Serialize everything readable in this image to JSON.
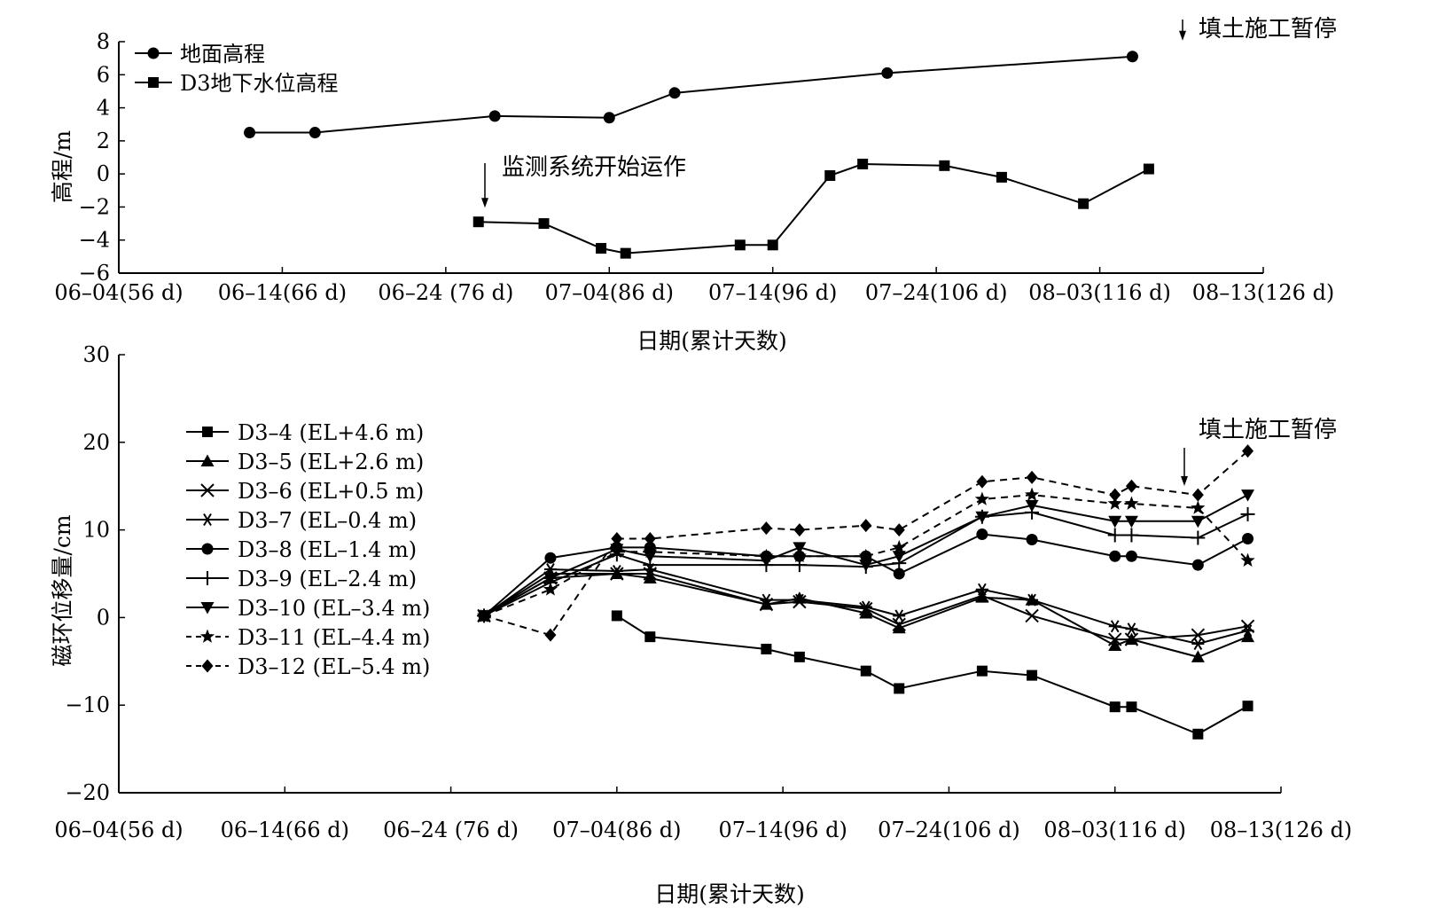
{
  "chart_data": [
    {
      "type": "line",
      "xlabel": "日期(累计天数)",
      "ylabel": "高程/m",
      "x_unit": "累计天数 (d)",
      "xlim": [
        56,
        126
      ],
      "ylim": [
        -6,
        8
      ],
      "yticks": [
        -6,
        -4,
        -2,
        0,
        2,
        4,
        6,
        8
      ],
      "xticks": [
        {
          "x": 56,
          "label": "06–04(56 d)"
        },
        {
          "x": 66,
          "label": "06–14(66 d)"
        },
        {
          "x": 76,
          "label": "06–24 (76 d)"
        },
        {
          "x": 86,
          "label": "07–04(86 d)"
        },
        {
          "x": 96,
          "label": "07–14(96 d)"
        },
        {
          "x": 106,
          "label": "07–24(106 d)"
        },
        {
          "x": 116,
          "label": "08–03(116 d)"
        },
        {
          "x": 126,
          "label": "08–13(126 d)"
        }
      ],
      "legend_position": "top-left",
      "series": [
        {
          "name": "地面高程",
          "marker": "circle",
          "dash": false,
          "x": [
            64,
            68,
            79,
            86,
            90,
            103,
            118
          ],
          "y": [
            2.5,
            2.5,
            3.5,
            3.4,
            4.9,
            6.1,
            7.1
          ]
        },
        {
          "name": "D3地下水位高程",
          "marker": "square",
          "dash": false,
          "x": [
            78,
            82,
            85.5,
            87,
            94,
            96,
            99.5,
            101.5,
            106.5,
            110,
            115,
            119
          ],
          "y": [
            -2.9,
            -3.0,
            -4.5,
            -4.8,
            -4.3,
            -4.3,
            -0.1,
            0.6,
            0.5,
            -0.2,
            -1.8,
            0.3
          ]
        }
      ],
      "annotations": [
        {
          "text": "填土施工暂停",
          "x": 118,
          "y": 7.1
        },
        {
          "text": "监测系统开始运作",
          "x": 78,
          "y": -2.9
        }
      ]
    },
    {
      "type": "line",
      "xlabel": "日期(累计天数)",
      "ylabel": "磁环位移量/cm",
      "x_unit": "累计天数 (d)",
      "xlim": [
        56,
        126
      ],
      "ylim": [
        -20,
        30
      ],
      "yticks": [
        -20,
        -10,
        0,
        10,
        20,
        30
      ],
      "xticks": [
        {
          "x": 56,
          "label": "06–04(56 d)"
        },
        {
          "x": 66,
          "label": "06–14(66 d)"
        },
        {
          "x": 76,
          "label": "06–24 (76 d)"
        },
        {
          "x": 86,
          "label": "07–04(86 d)"
        },
        {
          "x": 96,
          "label": "07–14(96 d)"
        },
        {
          "x": 106,
          "label": "07–24(106 d)"
        },
        {
          "x": 116,
          "label": "08–03(116 d)"
        },
        {
          "x": 126,
          "label": "08–13(126 d)"
        }
      ],
      "legend_position": "left",
      "series": [
        {
          "name": "D3–4 (EL+4.6 m)",
          "marker": "square",
          "dash": false,
          "x": [
            86,
            88,
            95,
            97,
            101,
            103,
            108,
            111,
            116,
            117,
            121,
            124
          ],
          "y": [
            0.2,
            -2.2,
            -3.6,
            -4.5,
            -6.1,
            -8.1,
            -6.1,
            -6.6,
            -10.2,
            -10.2,
            -13.3,
            -10.1
          ]
        },
        {
          "name": "D3–5 (EL+2.6 m)",
          "marker": "triangle-up",
          "dash": false,
          "x": [
            78,
            82,
            86,
            88,
            95,
            97,
            101,
            103,
            108,
            111,
            116,
            117,
            121,
            124
          ],
          "y": [
            0.2,
            5.0,
            5.0,
            4.5,
            1.5,
            2.2,
            0.5,
            -1.2,
            2.3,
            2.0,
            -3.2,
            -2.5,
            -4.5,
            -2.2
          ]
        },
        {
          "name": "D3–6 (EL+0.5 m)",
          "marker": "x",
          "dash": false,
          "x": [
            78,
            82,
            86,
            88,
            95,
            97,
            101,
            103,
            108,
            111,
            116,
            117,
            121,
            124
          ],
          "y": [
            0.2,
            4.5,
            5.0,
            5.0,
            1.5,
            1.8,
            1.0,
            -0.8,
            2.5,
            0.2,
            -2.5,
            -2.5,
            -2.0,
            -1.0
          ]
        },
        {
          "name": "D3–7 (EL–0.4 m)",
          "marker": "asterisk",
          "dash": false,
          "x": [
            78,
            82,
            86,
            88,
            95,
            97,
            101,
            103,
            108,
            111,
            116,
            117,
            121,
            124
          ],
          "y": [
            0.2,
            5.5,
            5.3,
            5.5,
            2.0,
            2.0,
            1.2,
            0.2,
            3.2,
            2.0,
            -1.0,
            -1.3,
            -3.0,
            -1.5
          ]
        },
        {
          "name": "D3–8 (EL–1.4 m)",
          "marker": "circle",
          "dash": false,
          "x": [
            78,
            82,
            86,
            88,
            95,
            97,
            101,
            103,
            108,
            111,
            116,
            117,
            121,
            124
          ],
          "y": [
            0.2,
            6.8,
            8.0,
            8.0,
            7.0,
            7.0,
            7.0,
            5.0,
            9.5,
            8.9,
            7.0,
            7.0,
            6.0,
            9.0
          ]
        },
        {
          "name": "D3–9 (EL–2.4 m)",
          "marker": "plus",
          "dash": false,
          "x": [
            78,
            82,
            86,
            88,
            95,
            97,
            101,
            103,
            108,
            111,
            116,
            117,
            121,
            124
          ],
          "y": [
            0.2,
            4.0,
            7.2,
            6.0,
            6.0,
            6.0,
            5.8,
            6.2,
            11.5,
            12.0,
            9.4,
            9.4,
            9.1,
            11.8
          ]
        },
        {
          "name": "D3–10 (EL–3.4 m)",
          "marker": "triangle-down",
          "dash": false,
          "x": [
            78,
            82,
            86,
            88,
            95,
            97,
            101,
            103,
            108,
            111,
            116,
            117,
            121,
            124
          ],
          "y": [
            0.2,
            4.5,
            7.8,
            7.0,
            6.5,
            8.0,
            6.0,
            7.0,
            11.5,
            12.8,
            11.0,
            11.0,
            11.0,
            14.0
          ]
        },
        {
          "name": "D3–11 (EL–4.4 m)",
          "marker": "star",
          "dash": true,
          "x": [
            78,
            82,
            86,
            88,
            95,
            97,
            101,
            103,
            108,
            111,
            116,
            117,
            121,
            124
          ],
          "y": [
            0.2,
            3.2,
            7.5,
            7.5,
            7.0,
            7.0,
            7.0,
            8.0,
            13.5,
            14.0,
            13.0,
            13.0,
            12.5,
            6.5
          ]
        },
        {
          "name": "D3–12 (EL–5.4 m)",
          "marker": "diamond",
          "dash": true,
          "x": [
            78,
            82,
            86,
            88,
            95,
            97,
            101,
            103,
            108,
            111,
            116,
            117,
            121,
            124
          ],
          "y": [
            0.2,
            -2.0,
            9.0,
            9.0,
            10.2,
            10.0,
            10.5,
            10.0,
            15.5,
            16.0,
            14.0,
            15.0,
            14.0,
            19.0
          ]
        }
      ],
      "annotations": [
        {
          "text": "填土施工暂停",
          "x": 118,
          "y": 15
        }
      ]
    }
  ]
}
